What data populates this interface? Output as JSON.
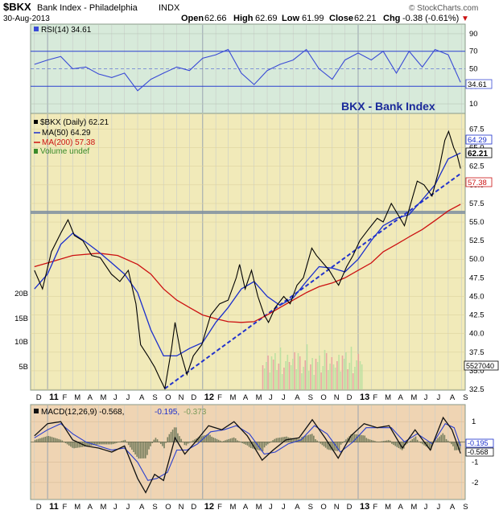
{
  "header": {
    "symbol": "$BKX",
    "name": "Bank Index - Philadelphia",
    "exchange": "INDX",
    "date": "30-Aug-2013",
    "ohlc": [
      {
        "label": "Open",
        "value": "62.66"
      },
      {
        "label": "High",
        "value": "62.69"
      },
      {
        "label": "Low",
        "value": "61.99"
      },
      {
        "label": "Close",
        "value": "62.21"
      }
    ],
    "chg_label": "Chg",
    "chg_value": "-0.38 (-0.61%)",
    "chg_marker": "▼",
    "watermark": "© StockCharts.com"
  },
  "colors": {
    "price": "#000000",
    "ma50": "#1a2ecc",
    "ma200": "#cc1111",
    "rsi": "#3a4bd6",
    "macd": "#111111",
    "signal": "#2a3fcf",
    "trendline": "#2233cc",
    "volume_up": "#b8e0a0",
    "volume_down": "#e8a0a0",
    "histogram": "#7a8060",
    "panel_rsi": "#d7eada",
    "panel_price": "#f1eab9",
    "panel_macd": "#efd4b3",
    "support": "#7f8fa0"
  },
  "rsi_panel": {
    "label": "RSI(14) 34.61",
    "current_tag": "34.61",
    "ticks": [
      "90",
      "70",
      "50",
      "30",
      "10"
    ]
  },
  "price_panel": {
    "title": "BKX - Bank Index",
    "legend": [
      {
        "text": "$BKX (Daily) 62.21",
        "color": "#000000"
      },
      {
        "text": "MA(50) 64.29",
        "color": "#1a2ecc"
      },
      {
        "text": "MA(200) 57.38",
        "color": "#cc1111"
      },
      {
        "text": "Volume undef",
        "color": "#3a8a2a"
      }
    ],
    "price_ticks": [
      "67.5",
      "65.0",
      "62.5",
      "60.0",
      "57.5",
      "55.0",
      "52.5",
      "50.0",
      "47.5",
      "45.0",
      "42.5",
      "40.0",
      "37.5",
      "35.0",
      "32.5"
    ],
    "volume_ticks": [
      "20B",
      "15B",
      "10B",
      "5B"
    ],
    "tags": [
      {
        "text": "64.29",
        "color": "#1a2ecc"
      },
      {
        "text": "62.21",
        "color": "#000000"
      },
      {
        "text": "57.38",
        "color": "#cc1111"
      },
      {
        "text": "5527040",
        "color": "#000000"
      }
    ]
  },
  "macd_panel": {
    "label_macd": "MACD(12,26,9) -0.568,",
    "label_signal": "-0.195,",
    "label_hist": "-0.373",
    "ticks": [
      "1",
      "0",
      "-1",
      "-2"
    ],
    "tags": [
      "-0.195",
      "-0.568"
    ]
  },
  "x_axis": {
    "labels": [
      "D",
      "11",
      "F",
      "M",
      "A",
      "M",
      "J",
      "J",
      "A",
      "S",
      "O",
      "N",
      "D",
      "12",
      "F",
      "M",
      "A",
      "M",
      "J",
      "J",
      "A",
      "S",
      "O",
      "N",
      "D",
      "13",
      "F",
      "M",
      "A",
      "M",
      "J",
      "J",
      "A",
      "S"
    ]
  },
  "chart_data": {
    "type": "line",
    "rsi_range": [
      0,
      100
    ],
    "price_range": [
      32.5,
      69.5
    ],
    "support_level": 56.3,
    "trendline": [
      [
        "2011-10-04",
        32.6
      ],
      [
        "2013-08-30",
        61.5
      ]
    ],
    "price": [
      [
        "2010-12-01",
        48.5
      ],
      [
        "2010-12-20",
        46.0
      ],
      [
        "2011-01-10",
        51.0
      ],
      [
        "2011-02-01",
        53.5
      ],
      [
        "2011-02-18",
        55.3
      ],
      [
        "2011-03-05",
        53.2
      ],
      [
        "2011-03-25",
        52.5
      ],
      [
        "2011-04-15",
        50.5
      ],
      [
        "2011-05-05",
        50.2
      ],
      [
        "2011-05-31",
        48.0
      ],
      [
        "2011-06-20",
        47.0
      ],
      [
        "2011-07-10",
        48.5
      ],
      [
        "2011-07-28",
        44.0
      ],
      [
        "2011-08-08",
        38.5
      ],
      [
        "2011-08-25",
        37.0
      ],
      [
        "2011-09-10",
        35.5
      ],
      [
        "2011-09-22",
        34.0
      ],
      [
        "2011-10-04",
        32.6
      ],
      [
        "2011-10-20",
        38.0
      ],
      [
        "2011-10-28",
        41.5
      ],
      [
        "2011-11-10",
        37.5
      ],
      [
        "2011-11-25",
        34.5
      ],
      [
        "2011-12-10",
        37.0
      ],
      [
        "2011-12-30",
        38.5
      ],
      [
        "2012-01-20",
        42.5
      ],
      [
        "2012-02-10",
        44.0
      ],
      [
        "2012-03-01",
        44.5
      ],
      [
        "2012-03-20",
        47.5
      ],
      [
        "2012-03-28",
        49.3
      ],
      [
        "2012-04-10",
        46.0
      ],
      [
        "2012-04-25",
        48.5
      ],
      [
        "2012-05-10",
        45.0
      ],
      [
        "2012-05-25",
        42.5
      ],
      [
        "2012-06-04",
        41.5
      ],
      [
        "2012-06-20",
        43.5
      ],
      [
        "2012-07-10",
        45.0
      ],
      [
        "2012-07-25",
        44.0
      ],
      [
        "2012-08-10",
        46.5
      ],
      [
        "2012-08-25",
        47.5
      ],
      [
        "2012-09-14",
        51.5
      ],
      [
        "2012-09-25",
        50.5
      ],
      [
        "2012-10-10",
        49.5
      ],
      [
        "2012-10-25",
        48.5
      ],
      [
        "2012-11-10",
        47.0
      ],
      [
        "2012-11-16",
        46.5
      ],
      [
        "2012-12-05",
        49.0
      ],
      [
        "2012-12-20",
        50.5
      ],
      [
        "2013-01-05",
        52.5
      ],
      [
        "2013-01-25",
        54.0
      ],
      [
        "2013-02-15",
        55.5
      ],
      [
        "2013-03-01",
        55.0
      ],
      [
        "2013-03-20",
        57.5
      ],
      [
        "2013-04-10",
        55.5
      ],
      [
        "2013-04-20",
        54.5
      ],
      [
        "2013-05-05",
        57.5
      ],
      [
        "2013-05-20",
        60.5
      ],
      [
        "2013-06-05",
        60.0
      ],
      [
        "2013-06-24",
        58.5
      ],
      [
        "2013-07-10",
        62.0
      ],
      [
        "2013-07-24",
        66.0
      ],
      [
        "2013-08-02",
        67.2
      ],
      [
        "2013-08-14",
        65.0
      ],
      [
        "2013-08-22",
        64.0
      ],
      [
        "2013-08-30",
        62.2
      ]
    ],
    "ma50": [
      [
        "2010-12-01",
        46.0
      ],
      [
        "2011-01-01",
        48.0
      ],
      [
        "2011-02-01",
        52.0
      ],
      [
        "2011-03-01",
        53.5
      ],
      [
        "2011-04-01",
        52.3
      ],
      [
        "2011-05-01",
        51.0
      ],
      [
        "2011-06-01",
        49.5
      ],
      [
        "2011-07-01",
        48.0
      ],
      [
        "2011-08-01",
        45.5
      ],
      [
        "2011-09-01",
        40.5
      ],
      [
        "2011-10-01",
        37.0
      ],
      [
        "2011-11-01",
        37.0
      ],
      [
        "2011-12-01",
        38.0
      ],
      [
        "2012-01-01",
        38.8
      ],
      [
        "2012-02-01",
        41.5
      ],
      [
        "2012-03-01",
        43.5
      ],
      [
        "2012-04-01",
        46.0
      ],
      [
        "2012-05-01",
        47.0
      ],
      [
        "2012-06-01",
        45.0
      ],
      [
        "2012-07-01",
        43.8
      ],
      [
        "2012-08-01",
        44.8
      ],
      [
        "2012-09-01",
        47.0
      ],
      [
        "2012-10-01",
        49.0
      ],
      [
        "2012-11-01",
        48.8
      ],
      [
        "2012-12-01",
        48.3
      ],
      [
        "2013-01-01",
        50.0
      ],
      [
        "2013-02-01",
        52.5
      ],
      [
        "2013-03-01",
        54.5
      ],
      [
        "2013-04-01",
        55.5
      ],
      [
        "2013-05-01",
        56.0
      ],
      [
        "2013-06-01",
        58.0
      ],
      [
        "2013-07-01",
        60.0
      ],
      [
        "2013-08-01",
        63.5
      ],
      [
        "2013-08-30",
        64.29
      ]
    ],
    "ma200": [
      [
        "2010-12-01",
        49.0
      ],
      [
        "2011-01-01",
        49.5
      ],
      [
        "2011-03-01",
        50.5
      ],
      [
        "2011-05-01",
        50.8
      ],
      [
        "2011-06-15",
        50.5
      ],
      [
        "2011-08-01",
        49.3
      ],
      [
        "2011-09-01",
        48.0
      ],
      [
        "2011-10-01",
        46.0
      ],
      [
        "2011-11-01",
        44.5
      ],
      [
        "2011-12-01",
        43.5
      ],
      [
        "2012-01-01",
        42.5
      ],
      [
        "2012-02-01",
        42.0
      ],
      [
        "2012-03-01",
        41.6
      ],
      [
        "2012-04-01",
        41.5
      ],
      [
        "2012-05-01",
        41.6
      ],
      [
        "2012-06-01",
        42.5
      ],
      [
        "2012-07-01",
        43.5
      ],
      [
        "2012-08-01",
        44.5
      ],
      [
        "2012-09-01",
        45.5
      ],
      [
        "2012-10-01",
        46.3
      ],
      [
        "2012-11-01",
        46.8
      ],
      [
        "2012-12-01",
        47.5
      ],
      [
        "2013-01-01",
        48.5
      ],
      [
        "2013-02-01",
        49.5
      ],
      [
        "2013-03-01",
        51.0
      ],
      [
        "2013-04-01",
        52.0
      ],
      [
        "2013-05-01",
        53.0
      ],
      [
        "2013-06-01",
        54.0
      ],
      [
        "2013-07-01",
        55.2
      ],
      [
        "2013-08-01",
        56.5
      ],
      [
        "2013-08-30",
        57.38
      ]
    ],
    "rsi": [
      [
        "2010-12-01",
        55
      ],
      [
        "2011-01-01",
        60
      ],
      [
        "2011-02-01",
        64
      ],
      [
        "2011-03-01",
        50
      ],
      [
        "2011-04-01",
        52
      ],
      [
        "2011-05-01",
        44
      ],
      [
        "2011-06-01",
        40
      ],
      [
        "2011-07-01",
        45
      ],
      [
        "2011-08-01",
        25
      ],
      [
        "2011-09-01",
        38
      ],
      [
        "2011-10-01",
        45
      ],
      [
        "2011-11-01",
        52
      ],
      [
        "2011-12-01",
        48
      ],
      [
        "2012-01-01",
        62
      ],
      [
        "2012-02-01",
        66
      ],
      [
        "2012-03-01",
        72
      ],
      [
        "2012-04-01",
        45
      ],
      [
        "2012-05-01",
        32
      ],
      [
        "2012-06-01",
        48
      ],
      [
        "2012-07-01",
        55
      ],
      [
        "2012-08-01",
        60
      ],
      [
        "2012-09-01",
        72
      ],
      [
        "2012-10-01",
        50
      ],
      [
        "2012-11-01",
        38
      ],
      [
        "2012-12-01",
        60
      ],
      [
        "2013-01-01",
        68
      ],
      [
        "2013-02-01",
        60
      ],
      [
        "2013-03-01",
        70
      ],
      [
        "2013-04-01",
        45
      ],
      [
        "2013-05-01",
        70
      ],
      [
        "2013-06-01",
        52
      ],
      [
        "2013-07-01",
        72
      ],
      [
        "2013-08-01",
        66
      ],
      [
        "2013-08-30",
        34.61
      ]
    ],
    "macd_range": [
      -2.8,
      1.8
    ],
    "macd": [
      [
        "2010-12-01",
        0.3
      ],
      [
        "2011-01-01",
        0.9
      ],
      [
        "2011-02-01",
        1.0
      ],
      [
        "2011-03-01",
        0.1
      ],
      [
        "2011-04-01",
        -0.2
      ],
      [
        "2011-05-01",
        -0.3
      ],
      [
        "2011-06-01",
        -0.5
      ],
      [
        "2011-07-01",
        -0.2
      ],
      [
        "2011-08-01",
        -1.8
      ],
      [
        "2011-08-20",
        -2.5
      ],
      [
        "2011-09-10",
        -1.6
      ],
      [
        "2011-10-01",
        -1.9
      ],
      [
        "2011-10-28",
        0.2
      ],
      [
        "2011-11-20",
        -0.6
      ],
      [
        "2011-12-15",
        0.0
      ],
      [
        "2012-01-15",
        0.8
      ],
      [
        "2012-02-15",
        0.6
      ],
      [
        "2012-03-15",
        1.0
      ],
      [
        "2012-04-15",
        0.3
      ],
      [
        "2012-05-20",
        -0.9
      ],
      [
        "2012-06-15",
        -0.4
      ],
      [
        "2012-07-15",
        0.1
      ],
      [
        "2012-08-15",
        0.2
      ],
      [
        "2012-09-15",
        1.1
      ],
      [
        "2012-10-15",
        0.2
      ],
      [
        "2012-11-15",
        -0.8
      ],
      [
        "2012-12-15",
        0.3
      ],
      [
        "2013-01-15",
        0.9
      ],
      [
        "2013-02-15",
        0.7
      ],
      [
        "2013-03-15",
        0.8
      ],
      [
        "2013-04-15",
        -0.3
      ],
      [
        "2013-05-15",
        0.6
      ],
      [
        "2013-06-20",
        -0.4
      ],
      [
        "2013-07-20",
        1.2
      ],
      [
        "2013-08-10",
        0.6
      ],
      [
        "2013-08-30",
        -0.568
      ]
    ],
    "signal": [
      [
        "2010-12-01",
        0.2
      ],
      [
        "2011-01-01",
        0.6
      ],
      [
        "2011-02-01",
        0.9
      ],
      [
        "2011-03-01",
        0.4
      ],
      [
        "2011-04-01",
        0.0
      ],
      [
        "2011-05-01",
        -0.2
      ],
      [
        "2011-06-01",
        -0.4
      ],
      [
        "2011-07-01",
        -0.3
      ],
      [
        "2011-08-01",
        -1.0
      ],
      [
        "2011-08-25",
        -1.9
      ],
      [
        "2011-09-15",
        -1.8
      ],
      [
        "2011-10-10",
        -1.5
      ],
      [
        "2011-11-01",
        -0.4
      ],
      [
        "2011-11-25",
        -0.4
      ],
      [
        "2011-12-20",
        -0.1
      ],
      [
        "2012-01-20",
        0.5
      ],
      [
        "2012-02-20",
        0.6
      ],
      [
        "2012-03-20",
        0.8
      ],
      [
        "2012-04-20",
        0.4
      ],
      [
        "2012-05-25",
        -0.6
      ],
      [
        "2012-06-20",
        -0.5
      ],
      [
        "2012-07-20",
        -0.1
      ],
      [
        "2012-08-20",
        0.1
      ],
      [
        "2012-09-20",
        0.8
      ],
      [
        "2012-10-20",
        0.4
      ],
      [
        "2012-11-20",
        -0.5
      ],
      [
        "2012-12-20",
        0.0
      ],
      [
        "2013-01-20",
        0.7
      ],
      [
        "2013-02-20",
        0.7
      ],
      [
        "2013-03-20",
        0.7
      ],
      [
        "2013-04-20",
        0.0
      ],
      [
        "2013-05-20",
        0.4
      ],
      [
        "2013-06-25",
        -0.1
      ],
      [
        "2013-07-25",
        0.9
      ],
      [
        "2013-08-15",
        0.7
      ],
      [
        "2013-08-30",
        -0.195
      ]
    ]
  }
}
